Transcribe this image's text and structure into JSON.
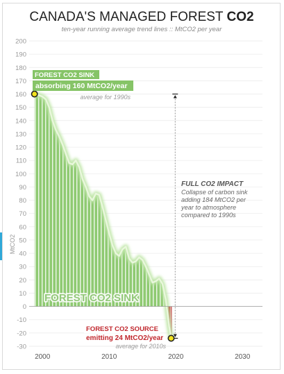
{
  "chart_data": {
    "type": "area",
    "title": "CANADA'S MANAGED FOREST",
    "title_bold": "CO2",
    "subtitle": "ten-year running average trend lines :: MtCO2 per year",
    "ylabel": "MtCO2",
    "xlabel": "",
    "xlim": [
      1998,
      2033
    ],
    "ylim": [
      -30,
      200
    ],
    "x_ticks": [
      2000,
      2010,
      2020,
      2030
    ],
    "y_ticks": [
      200,
      190,
      180,
      170,
      160,
      150,
      140,
      130,
      120,
      110,
      100,
      90,
      80,
      70,
      60,
      50,
      40,
      30,
      20,
      10,
      0,
      -10,
      -20,
      -30
    ],
    "grid": true,
    "sink_color": "#8fca72",
    "source_color": "#c0272d",
    "series": [
      {
        "x": [
          1998.8,
          1999.5,
          2000,
          2000.5,
          2001,
          2001.5,
          2002,
          2002.5,
          2003,
          2003.5,
          2004,
          2004.5,
          2005,
          2005.5,
          2006,
          2006.5,
          2007,
          2007.5,
          2008,
          2008.5,
          2009,
          2009.5,
          2010,
          2010.5,
          2011,
          2011.5,
          2012,
          2012.5,
          2013,
          2013.5,
          2014,
          2014.5,
          2015,
          2015.5,
          2016,
          2016.5,
          2017,
          2017.5,
          2018,
          2018.5,
          2019,
          2019.3
        ],
        "y": [
          160,
          159,
          158,
          156,
          150,
          140,
          133,
          128,
          122,
          115,
          108,
          107,
          110,
          105,
          96,
          90,
          83,
          80,
          85,
          84,
          75,
          65,
          55,
          46,
          40,
          38,
          43,
          45,
          36,
          33,
          34,
          37,
          35,
          30,
          24,
          18,
          19,
          21,
          17,
          5,
          -15,
          -24
        ]
      }
    ],
    "annotations": {
      "sink_title": "FOREST CO2 SINK",
      "sink_value": "absorbing 160 MtCO2/year",
      "sink_note": "average for 1990s",
      "impact_title": "FULL CO2 IMPACT",
      "impact_lines": [
        "Collapse of carbon sink",
        "adding 184 MtCO2 per",
        "year to atmosphere",
        "compared to 1990s"
      ],
      "area_label": "FOREST CO2 SINK",
      "source_title": "FOREST CO2 SOURCE",
      "source_value": "emitting 24 MtCO2/year",
      "source_note": "average for 2010s"
    }
  }
}
